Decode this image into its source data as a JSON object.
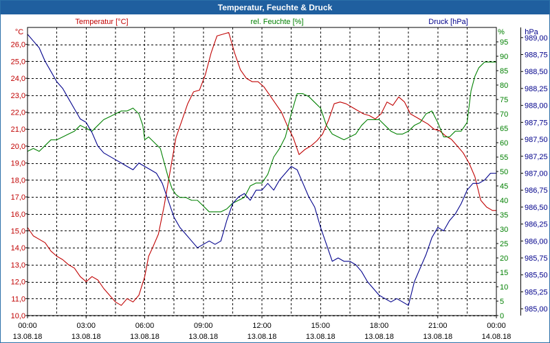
{
  "window": {
    "title": "Temperatur, Feuchte & Druck"
  },
  "colors": {
    "temperature": "#c00000",
    "humidity": "#008000",
    "pressure": "#00008b",
    "grid": "#000000"
  },
  "chart_data": {
    "type": "line",
    "title": "Temperatur, Feuchte & Druck",
    "x_ticks": [
      {
        "time": "00:00",
        "date": "13.08.18"
      },
      {
        "time": "03:00",
        "date": "13.08.18"
      },
      {
        "time": "06:00",
        "date": "13.08.18"
      },
      {
        "time": "09:00",
        "date": "13.08.18"
      },
      {
        "time": "12:00",
        "date": "13.08.18"
      },
      {
        "time": "15:00",
        "date": "13.08.18"
      },
      {
        "time": "18:00",
        "date": "13.08.18"
      },
      {
        "time": "21:00",
        "date": "13.08.18"
      },
      {
        "time": "00:00",
        "date": "14.08.18"
      }
    ],
    "xlim_hours": [
      0,
      24
    ],
    "axes": {
      "temperature": {
        "label": "Temperatur [°C]",
        "unit": "°C",
        "min": 10,
        "max": 27,
        "ticks": [
          "10,0",
          "11,0",
          "12,0",
          "13,0",
          "14,0",
          "15,0",
          "16,0",
          "17,0",
          "18,0",
          "19,0",
          "20,0",
          "21,0",
          "22,0",
          "23,0",
          "24,0",
          "25,0",
          "26,0"
        ]
      },
      "humidity": {
        "label": "rel. Feuchte [%]",
        "unit": "%",
        "min": 0,
        "max": 100,
        "ticks": [
          "0",
          "5",
          "10",
          "15",
          "20",
          "25",
          "30",
          "35",
          "40",
          "45",
          "50",
          "55",
          "60",
          "65",
          "70",
          "75",
          "80",
          "85",
          "90",
          "95"
        ]
      },
      "pressure": {
        "label": "Druck [hPa]",
        "unit": "hPa",
        "min": 984.9,
        "max": 989.15,
        "ticks": [
          "985,00",
          "985,25",
          "985,50",
          "985,75",
          "986,00",
          "986,25",
          "986,50",
          "986,75",
          "987,00",
          "987,25",
          "987,50",
          "987,75",
          "988,00",
          "988,25",
          "988,50",
          "988,75",
          "989,00"
        ]
      }
    },
    "series": [
      {
        "name": "Temperatur [°C]",
        "axis": "temperature",
        "color": "#c00000",
        "points": [
          [
            0,
            15.2
          ],
          [
            0.3,
            14.7
          ],
          [
            0.6,
            14.5
          ],
          [
            0.9,
            14.3
          ],
          [
            1.2,
            13.8
          ],
          [
            1.5,
            13.5
          ],
          [
            1.8,
            13.3
          ],
          [
            2.1,
            13.0
          ],
          [
            2.4,
            12.8
          ],
          [
            2.7,
            12.3
          ],
          [
            3.0,
            12.0
          ],
          [
            3.3,
            12.3
          ],
          [
            3.6,
            12.1
          ],
          [
            3.9,
            11.6
          ],
          [
            4.2,
            11.2
          ],
          [
            4.5,
            10.8
          ],
          [
            4.8,
            10.6
          ],
          [
            5.1,
            11.0
          ],
          [
            5.4,
            10.8
          ],
          [
            5.7,
            11.2
          ],
          [
            6.0,
            12.3
          ],
          [
            6.2,
            13.5
          ],
          [
            6.4,
            14.0
          ],
          [
            6.7,
            14.8
          ],
          [
            7.0,
            16.5
          ],
          [
            7.3,
            18.5
          ],
          [
            7.6,
            20.5
          ],
          [
            7.9,
            21.5
          ],
          [
            8.2,
            22.5
          ],
          [
            8.5,
            23.2
          ],
          [
            8.8,
            23.3
          ],
          [
            9.1,
            24.2
          ],
          [
            9.4,
            25.5
          ],
          [
            9.7,
            26.5
          ],
          [
            10.0,
            26.6
          ],
          [
            10.3,
            26.7
          ],
          [
            10.6,
            25.5
          ],
          [
            10.9,
            24.5
          ],
          [
            11.2,
            24.0
          ],
          [
            11.5,
            23.8
          ],
          [
            11.8,
            23.8
          ],
          [
            12.1,
            23.5
          ],
          [
            12.4,
            23.0
          ],
          [
            12.7,
            22.5
          ],
          [
            13.0,
            22.0
          ],
          [
            13.3,
            21.2
          ],
          [
            13.6,
            20.5
          ],
          [
            13.9,
            19.5
          ],
          [
            14.2,
            19.8
          ],
          [
            14.5,
            20.0
          ],
          [
            14.8,
            20.3
          ],
          [
            15.1,
            20.7
          ],
          [
            15.4,
            21.5
          ],
          [
            15.7,
            22.5
          ],
          [
            16.0,
            22.6
          ],
          [
            16.3,
            22.5
          ],
          [
            16.6,
            22.3
          ],
          [
            16.9,
            22.1
          ],
          [
            17.2,
            21.9
          ],
          [
            17.5,
            21.8
          ],
          [
            17.8,
            21.6
          ],
          [
            18.1,
            21.9
          ],
          [
            18.4,
            22.6
          ],
          [
            18.7,
            22.4
          ],
          [
            19.0,
            22.9
          ],
          [
            19.3,
            22.6
          ],
          [
            19.6,
            21.9
          ],
          [
            19.9,
            21.7
          ],
          [
            20.2,
            21.5
          ],
          [
            20.5,
            21.3
          ],
          [
            20.8,
            21.0
          ],
          [
            21.1,
            20.9
          ],
          [
            21.4,
            20.6
          ],
          [
            21.7,
            20.4
          ],
          [
            22.0,
            20.0
          ],
          [
            22.3,
            19.6
          ],
          [
            22.6,
            19.0
          ],
          [
            22.9,
            18.2
          ],
          [
            23.2,
            16.8
          ],
          [
            23.5,
            16.4
          ],
          [
            23.8,
            16.2
          ],
          [
            24.0,
            16.2
          ]
        ]
      },
      {
        "name": "rel. Feuchte [%]",
        "axis": "humidity",
        "color": "#008000",
        "points": [
          [
            0,
            57
          ],
          [
            0.3,
            58
          ],
          [
            0.6,
            57
          ],
          [
            0.9,
            59
          ],
          [
            1.2,
            61
          ],
          [
            1.5,
            61
          ],
          [
            1.8,
            62
          ],
          [
            2.1,
            63
          ],
          [
            2.4,
            64
          ],
          [
            2.7,
            66
          ],
          [
            3.0,
            65
          ],
          [
            3.3,
            64
          ],
          [
            3.6,
            66
          ],
          [
            3.9,
            68
          ],
          [
            4.2,
            69
          ],
          [
            4.5,
            70
          ],
          [
            4.8,
            71
          ],
          [
            5.1,
            71
          ],
          [
            5.4,
            72
          ],
          [
            5.7,
            70
          ],
          [
            5.9,
            66
          ],
          [
            6.0,
            61
          ],
          [
            6.2,
            62
          ],
          [
            6.5,
            60
          ],
          [
            6.8,
            58
          ],
          [
            7.0,
            53
          ],
          [
            7.2,
            48
          ],
          [
            7.4,
            44
          ],
          [
            7.6,
            42
          ],
          [
            7.8,
            41
          ],
          [
            8.1,
            41
          ],
          [
            8.4,
            40
          ],
          [
            8.7,
            40
          ],
          [
            9.0,
            38
          ],
          [
            9.3,
            36
          ],
          [
            9.6,
            36
          ],
          [
            9.9,
            36
          ],
          [
            10.2,
            37
          ],
          [
            10.5,
            39
          ],
          [
            10.8,
            40
          ],
          [
            11.1,
            41
          ],
          [
            11.4,
            45
          ],
          [
            11.7,
            46
          ],
          [
            12.0,
            46
          ],
          [
            12.3,
            49
          ],
          [
            12.6,
            55
          ],
          [
            12.9,
            58
          ],
          [
            13.2,
            62
          ],
          [
            13.5,
            70
          ],
          [
            13.8,
            77
          ],
          [
            14.1,
            77
          ],
          [
            14.4,
            76
          ],
          [
            14.7,
            74
          ],
          [
            15.0,
            72
          ],
          [
            15.3,
            66
          ],
          [
            15.6,
            63
          ],
          [
            15.9,
            62
          ],
          [
            16.2,
            61
          ],
          [
            16.5,
            62
          ],
          [
            16.8,
            63
          ],
          [
            17.1,
            66
          ],
          [
            17.4,
            68
          ],
          [
            17.7,
            68
          ],
          [
            18.0,
            68
          ],
          [
            18.3,
            66
          ],
          [
            18.6,
            64
          ],
          [
            18.9,
            63
          ],
          [
            19.2,
            63
          ],
          [
            19.5,
            64
          ],
          [
            19.8,
            66
          ],
          [
            20.1,
            67
          ],
          [
            20.4,
            70
          ],
          [
            20.7,
            71
          ],
          [
            21.0,
            67
          ],
          [
            21.3,
            62
          ],
          [
            21.6,
            62
          ],
          [
            21.9,
            64
          ],
          [
            22.2,
            64
          ],
          [
            22.5,
            67
          ],
          [
            22.7,
            78
          ],
          [
            22.9,
            83
          ],
          [
            23.1,
            86
          ],
          [
            23.4,
            88
          ],
          [
            23.7,
            88
          ],
          [
            24.0,
            88
          ]
        ]
      },
      {
        "name": "Druck [hPa]",
        "axis": "pressure",
        "color": "#00008b",
        "points": [
          [
            0,
            989.05
          ],
          [
            0.3,
            988.95
          ],
          [
            0.6,
            988.85
          ],
          [
            0.9,
            988.65
          ],
          [
            1.2,
            988.5
          ],
          [
            1.5,
            988.35
          ],
          [
            1.8,
            988.25
          ],
          [
            2.1,
            988.1
          ],
          [
            2.4,
            987.95
          ],
          [
            2.7,
            987.8
          ],
          [
            3.0,
            987.75
          ],
          [
            3.3,
            987.6
          ],
          [
            3.6,
            987.4
          ],
          [
            3.9,
            987.3
          ],
          [
            4.2,
            987.25
          ],
          [
            4.5,
            987.2
          ],
          [
            4.8,
            987.15
          ],
          [
            5.1,
            987.1
          ],
          [
            5.4,
            987.05
          ],
          [
            5.7,
            987.15
          ],
          [
            6.0,
            987.1
          ],
          [
            6.3,
            987.05
          ],
          [
            6.6,
            987.0
          ],
          [
            6.9,
            986.85
          ],
          [
            7.2,
            986.6
          ],
          [
            7.5,
            986.35
          ],
          [
            7.8,
            986.2
          ],
          [
            8.1,
            986.1
          ],
          [
            8.4,
            986.0
          ],
          [
            8.7,
            985.9
          ],
          [
            9.0,
            985.95
          ],
          [
            9.3,
            986.0
          ],
          [
            9.6,
            985.95
          ],
          [
            9.9,
            986.0
          ],
          [
            10.2,
            986.3
          ],
          [
            10.5,
            986.55
          ],
          [
            10.8,
            986.65
          ],
          [
            11.1,
            986.7
          ],
          [
            11.4,
            986.6
          ],
          [
            11.7,
            986.75
          ],
          [
            12.0,
            986.75
          ],
          [
            12.3,
            986.85
          ],
          [
            12.6,
            986.75
          ],
          [
            12.9,
            986.9
          ],
          [
            13.2,
            987.0
          ],
          [
            13.5,
            987.1
          ],
          [
            13.8,
            987.05
          ],
          [
            14.1,
            986.85
          ],
          [
            14.4,
            986.65
          ],
          [
            14.7,
            986.5
          ],
          [
            15.0,
            986.2
          ],
          [
            15.3,
            985.95
          ],
          [
            15.6,
            985.7
          ],
          [
            15.9,
            985.75
          ],
          [
            16.2,
            985.7
          ],
          [
            16.5,
            985.7
          ],
          [
            16.8,
            985.65
          ],
          [
            17.1,
            985.55
          ],
          [
            17.4,
            985.4
          ],
          [
            17.7,
            985.3
          ],
          [
            18.0,
            985.2
          ],
          [
            18.3,
            985.15
          ],
          [
            18.6,
            985.1
          ],
          [
            18.9,
            985.15
          ],
          [
            19.2,
            985.1
          ],
          [
            19.5,
            985.05
          ],
          [
            19.8,
            985.4
          ],
          [
            20.1,
            985.6
          ],
          [
            20.4,
            985.8
          ],
          [
            20.7,
            986.05
          ],
          [
            21.0,
            986.2
          ],
          [
            21.3,
            986.15
          ],
          [
            21.6,
            986.3
          ],
          [
            21.9,
            986.4
          ],
          [
            22.2,
            986.55
          ],
          [
            22.5,
            986.75
          ],
          [
            22.8,
            986.85
          ],
          [
            23.1,
            986.85
          ],
          [
            23.4,
            986.9
          ],
          [
            23.7,
            987.0
          ],
          [
            24.0,
            987.0
          ]
        ]
      }
    ]
  }
}
